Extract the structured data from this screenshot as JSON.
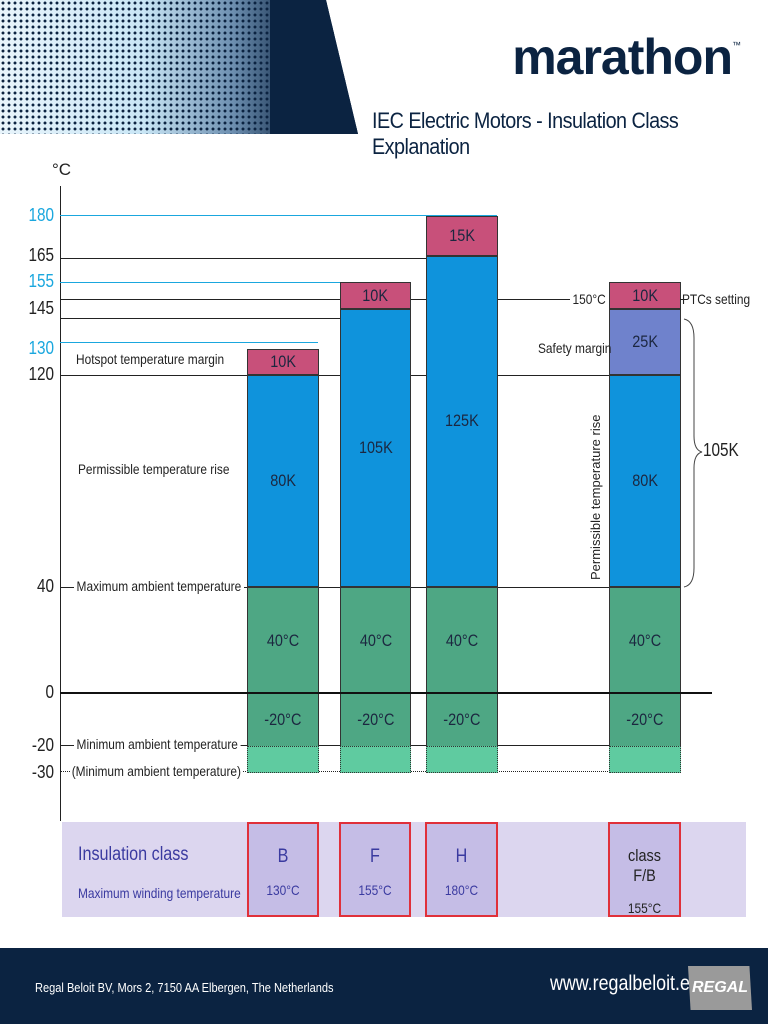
{
  "header": {
    "logo": "marathon",
    "trademark": "™",
    "title": "IEC Electric Motors - Insulation Class Explanation"
  },
  "colors": {
    "hotspot": "#c8507a",
    "rise": "#0f93dc",
    "ambient": "#4ea784",
    "min_ambient_ext": "#5fcba0",
    "safety": "#6f82cc",
    "cyan": "#1aa7de",
    "navy": "#0b2341",
    "band": "#dcd6ef",
    "class_border": "#e0303a"
  },
  "chart_data": {
    "type": "stacked-bar",
    "ylabel": "°C",
    "y_ticks": [
      {
        "v": 180,
        "label": "180",
        "highlight": true
      },
      {
        "v": 165,
        "label": "165"
      },
      {
        "v": 155,
        "label": "155",
        "highlight": true
      },
      {
        "v": 145,
        "label": "145"
      },
      {
        "v": 130,
        "label": "130",
        "highlight": true
      },
      {
        "v": 120,
        "label": "120"
      },
      {
        "v": 40,
        "label": "40"
      },
      {
        "v": 0,
        "label": "0"
      },
      {
        "v": -20,
        "label": "-20"
      },
      {
        "v": -30,
        "label": "-30"
      }
    ],
    "bars": [
      {
        "class": "B",
        "segments": [
          {
            "from": -30,
            "to": -20,
            "kind": "min_ambient_ext",
            "label": ""
          },
          {
            "from": -20,
            "to": 0,
            "kind": "ambient",
            "label": "-20°C"
          },
          {
            "from": 0,
            "to": 40,
            "kind": "ambient",
            "label": "40°C"
          },
          {
            "from": 40,
            "to": 120,
            "kind": "rise",
            "label": "80K"
          },
          {
            "from": 120,
            "to": 130,
            "kind": "hotspot",
            "label": "10K"
          }
        ]
      },
      {
        "class": "F",
        "segments": [
          {
            "from": -30,
            "to": -20,
            "kind": "min_ambient_ext",
            "label": ""
          },
          {
            "from": -20,
            "to": 0,
            "kind": "ambient",
            "label": "-20°C"
          },
          {
            "from": 0,
            "to": 40,
            "kind": "ambient",
            "label": "40°C"
          },
          {
            "from": 40,
            "to": 145,
            "kind": "rise",
            "label": "105K"
          },
          {
            "from": 145,
            "to": 155,
            "kind": "hotspot",
            "label": "10K"
          }
        ]
      },
      {
        "class": "H",
        "segments": [
          {
            "from": -30,
            "to": -20,
            "kind": "min_ambient_ext",
            "label": ""
          },
          {
            "from": -20,
            "to": 0,
            "kind": "ambient",
            "label": "-20°C"
          },
          {
            "from": 0,
            "to": 40,
            "kind": "ambient",
            "label": "40°C"
          },
          {
            "from": 40,
            "to": 165,
            "kind": "rise",
            "label": "125K"
          },
          {
            "from": 165,
            "to": 180,
            "kind": "hotspot",
            "label": "15K"
          }
        ]
      },
      {
        "class": "class F/B",
        "segments": [
          {
            "from": -30,
            "to": -20,
            "kind": "min_ambient_ext",
            "label": ""
          },
          {
            "from": -20,
            "to": 0,
            "kind": "ambient",
            "label": "-20°C"
          },
          {
            "from": 0,
            "to": 40,
            "kind": "ambient",
            "label": "40°C"
          },
          {
            "from": 40,
            "to": 120,
            "kind": "rise",
            "label": "80K"
          },
          {
            "from": 120,
            "to": 145,
            "kind": "safety",
            "label": "25K"
          },
          {
            "from": 145,
            "to": 155,
            "kind": "hotspot",
            "label": "10K"
          }
        ]
      }
    ]
  },
  "annotations": {
    "hotspot": "Hotspot temperature margin",
    "rise": "Permissible temperature rise",
    "max_ambient": "Maximum ambient temperature",
    "min_ambient": "Minimum ambient temperature",
    "min_ambient_ext": "(Minimum ambient temperature)",
    "ptc_temp": "150°C",
    "ptc": "PTCs setting",
    "safety": "Safety margin",
    "rise_vertical": "Permissible temperature rise",
    "brace_total": "105K"
  },
  "table": {
    "row1_label": "Insulation class",
    "row2_label": "Maximum winding temperature",
    "classes": [
      {
        "name": "B",
        "temp": "130°C"
      },
      {
        "name": "F",
        "temp": "155°C"
      },
      {
        "name": "H",
        "temp": "180°C"
      },
      {
        "name": "class F/B",
        "temp": "155°C"
      }
    ]
  },
  "footer": {
    "address": "Regal Beloit BV, Mors 2, 7150 AA Elbergen, The Netherlands",
    "website": "www.regalbeloit.eu",
    "logo": "REGAL"
  }
}
